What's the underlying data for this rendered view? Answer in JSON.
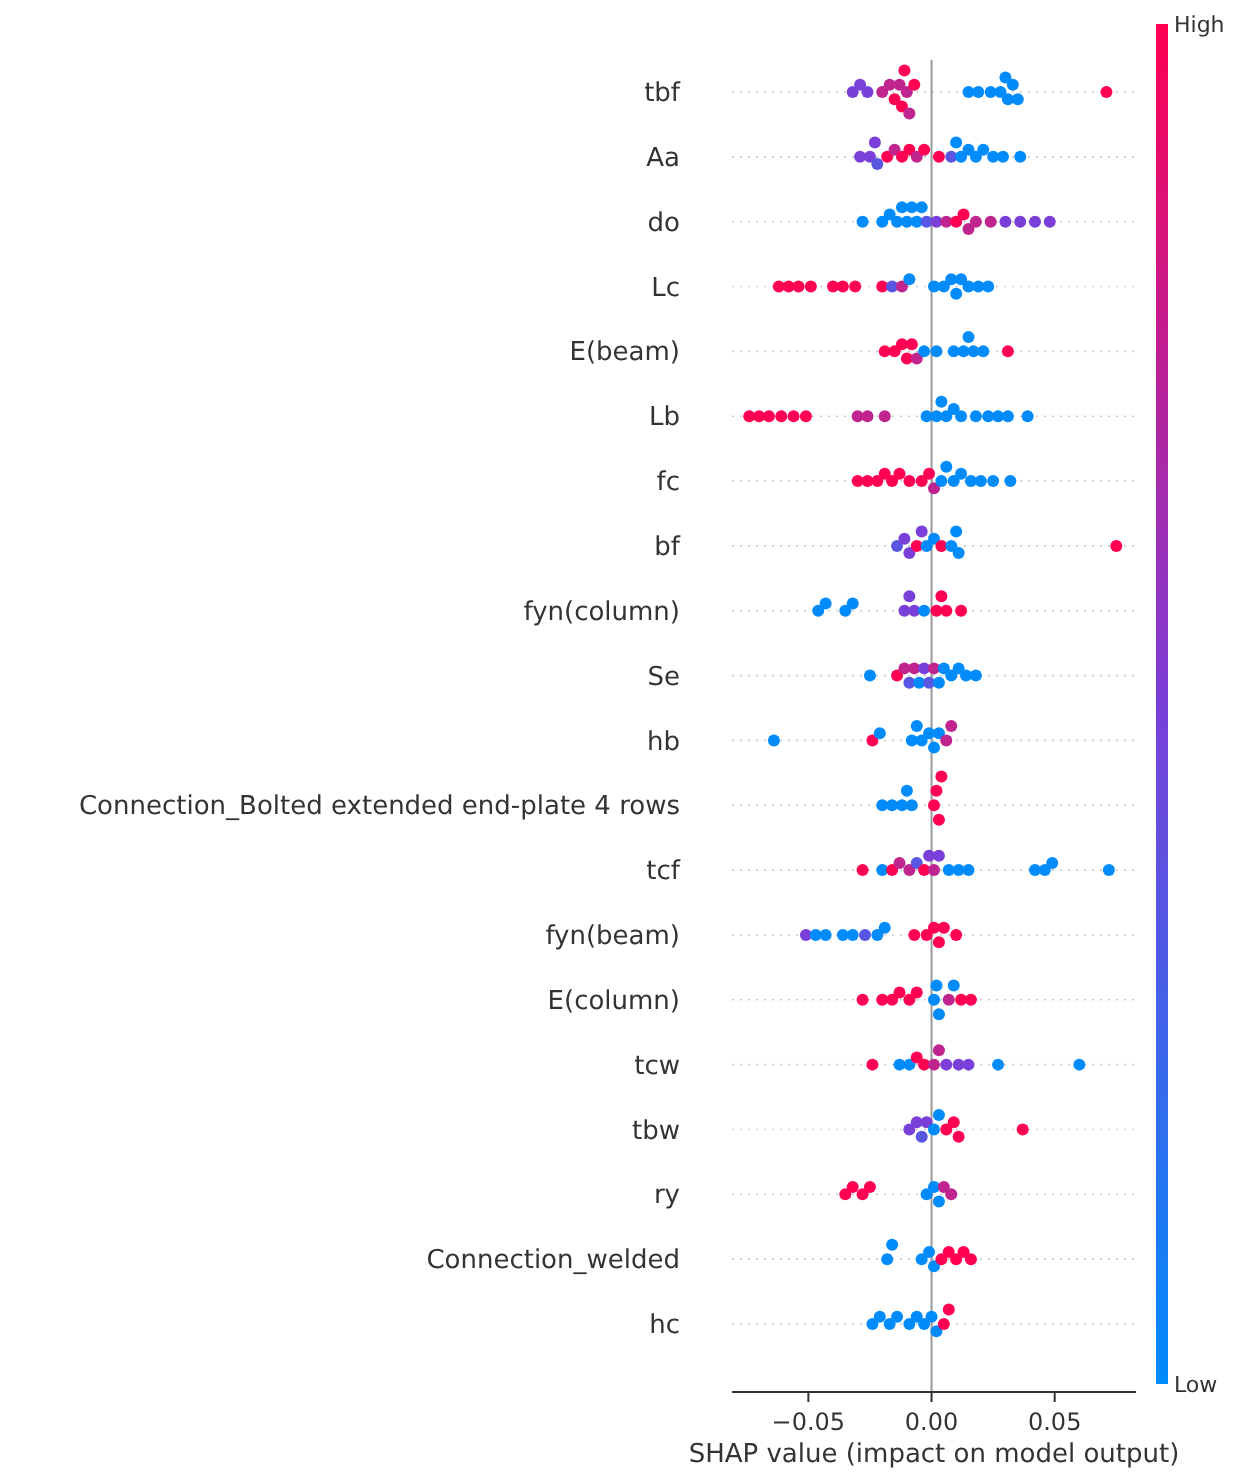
{
  "chart_data": {
    "type": "scatter",
    "orientation": "horizontal",
    "xlabel": "SHAP value (impact on model output)",
    "categories": [
      "tbf",
      "Aa",
      "do",
      "Lc",
      "E(beam)",
      "Lb",
      "fc",
      "bf",
      "fyn(column)",
      "Se",
      "hb",
      "Connection_Bolted extended end-plate 4 rows",
      "tcf",
      "fyn(beam)",
      "E(column)",
      "tcw",
      "tbw",
      "ry",
      "Connection_welded",
      "hc"
    ],
    "xlim": [
      -0.081,
      0.083
    ],
    "xticks": [
      {
        "value": -0.05,
        "label": "−0.05"
      },
      {
        "value": 0,
        "label": "0.00"
      },
      {
        "value": 0.05,
        "label": "0.05"
      }
    ],
    "clim": [
      0,
      1
    ],
    "cticks": [
      {
        "value": 0,
        "label": "Low"
      },
      {
        "value": 1,
        "label": "High"
      }
    ],
    "grid": "y",
    "marker": "circle",
    "ref_lines": [
      {
        "axis": "x",
        "value": 0,
        "color": "#999999"
      }
    ],
    "series": [
      {
        "x": [
          "tbf",
          "tbf",
          "tbf",
          "tbf",
          "tbf",
          "tbf",
          "tbf",
          "tbf",
          "tbf",
          "tbf",
          "tbf",
          "tbf",
          "tbf",
          "tbf",
          "tbf",
          "tbf",
          "tbf",
          "tbf",
          "tbf",
          "tbf",
          "tbf"
        ],
        "values": [
          -0.032,
          -0.029,
          -0.026,
          -0.02,
          -0.017,
          -0.015,
          -0.013,
          -0.012,
          -0.011,
          -0.01,
          -0.009,
          -0.007,
          0.015,
          0.019,
          0.024,
          0.028,
          0.03,
          0.031,
          0.033,
          0.035,
          0.071
        ],
        "colors": [
          "#7a3fd8",
          "#7a3fd8",
          "#7a3fd8",
          "#c0248f",
          "#c0248f",
          "#ff0052",
          "#c0248f",
          "#ff0052",
          "#ff0052",
          "#c0248f",
          "#c0248f",
          "#ff0052",
          "#008bfb",
          "#008bfb",
          "#008bfb",
          "#008bfb",
          "#008bfb",
          "#008bfb",
          "#008bfb",
          "#008bfb",
          "#ff0052"
        ]
      },
      {
        "x": [
          "Aa",
          "Aa",
          "Aa",
          "Aa",
          "Aa",
          "Aa",
          "Aa",
          "Aa",
          "Aa",
          "Aa",
          "Aa",
          "Aa",
          "Aa",
          "Aa",
          "Aa",
          "Aa",
          "Aa",
          "Aa",
          "Aa",
          "Aa"
        ],
        "values": [
          -0.029,
          -0.025,
          -0.023,
          -0.022,
          -0.018,
          -0.015,
          -0.012,
          -0.009,
          -0.006,
          -0.003,
          0.003,
          0.008,
          0.01,
          0.012,
          0.015,
          0.018,
          0.021,
          0.025,
          0.029,
          0.036
        ],
        "colors": [
          "#7a3fd8",
          "#7a3fd8",
          "#7a3fd8",
          "#5856e3",
          "#ff0052",
          "#c0248f",
          "#ff0052",
          "#ff0052",
          "#c0248f",
          "#ff0052",
          "#ff0052",
          "#5856e3",
          "#008bfb",
          "#008bfb",
          "#008bfb",
          "#008bfb",
          "#008bfb",
          "#008bfb",
          "#008bfb",
          "#008bfb"
        ]
      },
      {
        "x": [
          "do",
          "do",
          "do",
          "do",
          "do",
          "do",
          "do",
          "do",
          "do",
          "do",
          "do",
          "do",
          "do",
          "do",
          "do",
          "do",
          "do",
          "do",
          "do",
          "do",
          "do"
        ],
        "values": [
          -0.028,
          -0.02,
          -0.017,
          -0.014,
          -0.012,
          -0.01,
          -0.008,
          -0.006,
          -0.004,
          -0.002,
          0.002,
          0.006,
          0.01,
          0.013,
          0.015,
          0.018,
          0.024,
          0.03,
          0.036,
          0.042,
          0.048
        ],
        "colors": [
          "#008bfb",
          "#008bfb",
          "#008bfb",
          "#008bfb",
          "#008bfb",
          "#008bfb",
          "#008bfb",
          "#008bfb",
          "#008bfb",
          "#5856e3",
          "#7a3fd8",
          "#c0248f",
          "#ff0052",
          "#ff0052",
          "#c0248f",
          "#c0248f",
          "#c0248f",
          "#7a3fd8",
          "#7a3fd8",
          "#7a3fd8",
          "#7a3fd8"
        ]
      },
      {
        "x": [
          "Lc",
          "Lc",
          "Lc",
          "Lc",
          "Lc",
          "Lc",
          "Lc",
          "Lc",
          "Lc",
          "Lc",
          "Lc",
          "Lc",
          "Lc",
          "Lc",
          "Lc",
          "Lc",
          "Lc",
          "Lc",
          "Lc"
        ],
        "values": [
          -0.062,
          -0.058,
          -0.054,
          -0.049,
          -0.04,
          -0.036,
          -0.031,
          -0.02,
          -0.016,
          -0.012,
          -0.009,
          0.001,
          0.005,
          0.008,
          0.01,
          0.012,
          0.015,
          0.019,
          0.023
        ],
        "colors": [
          "#ff0052",
          "#ff0052",
          "#ff0052",
          "#ff0052",
          "#ff0052",
          "#ff0052",
          "#ff0052",
          "#ff0052",
          "#5856e3",
          "#c0248f",
          "#008bfb",
          "#008bfb",
          "#008bfb",
          "#008bfb",
          "#008bfb",
          "#008bfb",
          "#008bfb",
          "#008bfb",
          "#008bfb"
        ]
      },
      {
        "x": [
          "E(beam)",
          "E(beam)",
          "E(beam)",
          "E(beam)",
          "E(beam)",
          "E(beam)",
          "E(beam)",
          "E(beam)",
          "E(beam)",
          "E(beam)",
          "E(beam)",
          "E(beam)",
          "E(beam)",
          "E(beam)"
        ],
        "values": [
          -0.019,
          -0.015,
          -0.012,
          -0.01,
          -0.008,
          -0.006,
          -0.003,
          0.002,
          0.009,
          0.013,
          0.015,
          0.017,
          0.021,
          0.031
        ],
        "colors": [
          "#ff0052",
          "#ff0052",
          "#ff0052",
          "#ff0052",
          "#ff0052",
          "#c0248f",
          "#008bfb",
          "#008bfb",
          "#008bfb",
          "#008bfb",
          "#008bfb",
          "#008bfb",
          "#008bfb",
          "#ff0052"
        ]
      },
      {
        "x": [
          "Lb",
          "Lb",
          "Lb",
          "Lb",
          "Lb",
          "Lb",
          "Lb",
          "Lb",
          "Lb",
          "Lb",
          "Lb",
          "Lb",
          "Lb",
          "Lb",
          "Lb",
          "Lb",
          "Lb",
          "Lb",
          "Lb",
          "Lb"
        ],
        "values": [
          -0.074,
          -0.07,
          -0.066,
          -0.061,
          -0.056,
          -0.051,
          -0.03,
          -0.026,
          -0.019,
          -0.002,
          0.002,
          0.004,
          0.006,
          0.009,
          0.012,
          0.018,
          0.023,
          0.027,
          0.031,
          0.039
        ],
        "colors": [
          "#ff0052",
          "#ff0052",
          "#ff0052",
          "#ff0052",
          "#ff0052",
          "#ff0052",
          "#c0248f",
          "#c0248f",
          "#c0248f",
          "#008bfb",
          "#008bfb",
          "#008bfb",
          "#008bfb",
          "#008bfb",
          "#008bfb",
          "#008bfb",
          "#008bfb",
          "#008bfb",
          "#008bfb",
          "#008bfb"
        ]
      },
      {
        "x": [
          "fc",
          "fc",
          "fc",
          "fc",
          "fc",
          "fc",
          "fc",
          "fc",
          "fc",
          "fc",
          "fc",
          "fc",
          "fc",
          "fc",
          "fc",
          "fc",
          "fc",
          "fc"
        ],
        "values": [
          -0.03,
          -0.026,
          -0.022,
          -0.019,
          -0.016,
          -0.013,
          -0.009,
          -0.004,
          -0.001,
          0.001,
          0.004,
          0.006,
          0.009,
          0.012,
          0.016,
          0.02,
          0.025,
          0.032
        ],
        "colors": [
          "#ff0052",
          "#ff0052",
          "#ff0052",
          "#ff0052",
          "#ff0052",
          "#ff0052",
          "#ff0052",
          "#ff0052",
          "#ff0052",
          "#c0248f",
          "#008bfb",
          "#008bfb",
          "#008bfb",
          "#008bfb",
          "#008bfb",
          "#008bfb",
          "#008bfb",
          "#008bfb"
        ]
      },
      {
        "x": [
          "bf",
          "bf",
          "bf",
          "bf",
          "bf",
          "bf",
          "bf",
          "bf",
          "bf",
          "bf",
          "bf",
          "bf"
        ],
        "values": [
          -0.014,
          -0.011,
          -0.009,
          -0.006,
          -0.004,
          -0.002,
          0.001,
          0.004,
          0.008,
          0.01,
          0.011,
          0.075
        ],
        "colors": [
          "#5856e3",
          "#7a3fd8",
          "#7a3fd8",
          "#ff0052",
          "#7a3fd8",
          "#008bfb",
          "#008bfb",
          "#ff0052",
          "#008bfb",
          "#008bfb",
          "#008bfb",
          "#ff0052"
        ]
      },
      {
        "x": [
          "fyn(column)",
          "fyn(column)",
          "fyn(column)",
          "fyn(column)",
          "fyn(column)",
          "fyn(column)",
          "fyn(column)",
          "fyn(column)",
          "fyn(column)",
          "fyn(column)",
          "fyn(column)",
          "fyn(column)"
        ],
        "values": [
          -0.046,
          -0.043,
          -0.035,
          -0.032,
          -0.011,
          -0.009,
          -0.007,
          -0.003,
          0.002,
          0.004,
          0.006,
          0.012
        ],
        "colors": [
          "#008bfb",
          "#008bfb",
          "#008bfb",
          "#008bfb",
          "#7a3fd8",
          "#7a3fd8",
          "#7a3fd8",
          "#008bfb",
          "#ff0052",
          "#ff0052",
          "#ff0052",
          "#ff0052"
        ]
      },
      {
        "x": [
          "Se",
          "Se",
          "Se",
          "Se",
          "Se",
          "Se",
          "Se",
          "Se",
          "Se",
          "Se",
          "Se",
          "Se",
          "Se",
          "Se",
          "Se"
        ],
        "values": [
          -0.025,
          -0.014,
          -0.011,
          -0.009,
          -0.007,
          -0.005,
          -0.003,
          -0.001,
          0.001,
          0.003,
          0.005,
          0.008,
          0.011,
          0.014,
          0.018
        ],
        "colors": [
          "#008bfb",
          "#ff0052",
          "#c0248f",
          "#5856e3",
          "#c0248f",
          "#008bfb",
          "#7a3fd8",
          "#5856e3",
          "#c0248f",
          "#008bfb",
          "#008bfb",
          "#008bfb",
          "#008bfb",
          "#008bfb",
          "#008bfb"
        ]
      },
      {
        "x": [
          "hb",
          "hb",
          "hb",
          "hb",
          "hb",
          "hb",
          "hb",
          "hb",
          "hb",
          "hb",
          "hb"
        ],
        "values": [
          -0.064,
          -0.024,
          -0.021,
          -0.008,
          -0.006,
          -0.004,
          -0.001,
          0.001,
          0.003,
          0.006,
          0.008
        ],
        "colors": [
          "#008bfb",
          "#ff0052",
          "#008bfb",
          "#008bfb",
          "#008bfb",
          "#008bfb",
          "#008bfb",
          "#008bfb",
          "#008bfb",
          "#c0248f",
          "#c0248f"
        ]
      },
      {
        "x": [
          "Connection_Bolted extended end-plate 4 rows",
          "Connection_Bolted extended end-plate 4 rows",
          "Connection_Bolted extended end-plate 4 rows",
          "Connection_Bolted extended end-plate 4 rows",
          "Connection_Bolted extended end-plate 4 rows",
          "Connection_Bolted extended end-plate 4 rows",
          "Connection_Bolted extended end-plate 4 rows",
          "Connection_Bolted extended end-plate 4 rows",
          "Connection_Bolted extended end-plate 4 rows"
        ],
        "values": [
          -0.02,
          -0.016,
          -0.012,
          -0.01,
          -0.008,
          0.001,
          0.002,
          0.003,
          0.004
        ],
        "colors": [
          "#008bfb",
          "#008bfb",
          "#008bfb",
          "#008bfb",
          "#008bfb",
          "#ff0052",
          "#ff0052",
          "#ff0052",
          "#ff0052"
        ]
      },
      {
        "x": [
          "tcf",
          "tcf",
          "tcf",
          "tcf",
          "tcf",
          "tcf",
          "tcf",
          "tcf",
          "tcf",
          "tcf",
          "tcf",
          "tcf",
          "tcf",
          "tcf",
          "tcf",
          "tcf",
          "tcf"
        ],
        "values": [
          -0.028,
          -0.02,
          -0.016,
          -0.013,
          -0.009,
          -0.006,
          -0.003,
          -0.001,
          0.001,
          0.003,
          0.007,
          0.011,
          0.015,
          0.042,
          0.046,
          0.049,
          0.072
        ],
        "colors": [
          "#ff0052",
          "#008bfb",
          "#ff0052",
          "#c0248f",
          "#c0248f",
          "#5856e3",
          "#ff0052",
          "#7a3fd8",
          "#c0248f",
          "#7a3fd8",
          "#008bfb",
          "#008bfb",
          "#008bfb",
          "#008bfb",
          "#008bfb",
          "#008bfb",
          "#008bfb"
        ]
      },
      {
        "x": [
          "fyn(beam)",
          "fyn(beam)",
          "fyn(beam)",
          "fyn(beam)",
          "fyn(beam)",
          "fyn(beam)",
          "fyn(beam)",
          "fyn(beam)",
          "fyn(beam)",
          "fyn(beam)",
          "fyn(beam)",
          "fyn(beam)",
          "fyn(beam)",
          "fyn(beam)"
        ],
        "values": [
          -0.051,
          -0.047,
          -0.043,
          -0.036,
          -0.032,
          -0.027,
          -0.022,
          -0.019,
          -0.007,
          -0.002,
          0.001,
          0.003,
          0.005,
          0.01
        ],
        "colors": [
          "#7a3fd8",
          "#008bfb",
          "#008bfb",
          "#008bfb",
          "#008bfb",
          "#5856e3",
          "#008bfb",
          "#008bfb",
          "#ff0052",
          "#ff0052",
          "#ff0052",
          "#ff0052",
          "#ff0052",
          "#ff0052"
        ]
      },
      {
        "x": [
          "E(column)",
          "E(column)",
          "E(column)",
          "E(column)",
          "E(column)",
          "E(column)",
          "E(column)",
          "E(column)",
          "E(column)",
          "E(column)",
          "E(column)",
          "E(column)",
          "E(column)"
        ],
        "values": [
          -0.028,
          -0.02,
          -0.016,
          -0.013,
          -0.009,
          -0.006,
          0.001,
          0.002,
          0.003,
          0.007,
          0.009,
          0.012,
          0.016
        ],
        "colors": [
          "#ff0052",
          "#ff0052",
          "#ff0052",
          "#ff0052",
          "#ff0052",
          "#ff0052",
          "#008bfb",
          "#008bfb",
          "#008bfb",
          "#c0248f",
          "#008bfb",
          "#ff0052",
          "#ff0052"
        ]
      },
      {
        "x": [
          "tcw",
          "tcw",
          "tcw",
          "tcw",
          "tcw",
          "tcw",
          "tcw",
          "tcw",
          "tcw",
          "tcw",
          "tcw",
          "tcw"
        ],
        "values": [
          -0.024,
          -0.013,
          -0.009,
          -0.006,
          -0.003,
          0.001,
          0.003,
          0.006,
          0.011,
          0.015,
          0.027,
          0.06
        ],
        "colors": [
          "#ff0052",
          "#008bfb",
          "#008bfb",
          "#ff0052",
          "#ff0052",
          "#c0248f",
          "#c0248f",
          "#7a3fd8",
          "#7a3fd8",
          "#7a3fd8",
          "#008bfb",
          "#008bfb"
        ]
      },
      {
        "x": [
          "tbw",
          "tbw",
          "tbw",
          "tbw",
          "tbw",
          "tbw",
          "tbw",
          "tbw",
          "tbw",
          "tbw"
        ],
        "values": [
          -0.009,
          -0.006,
          -0.004,
          -0.002,
          0.001,
          0.003,
          0.006,
          0.009,
          0.011,
          0.037
        ],
        "colors": [
          "#7a3fd8",
          "#7a3fd8",
          "#5856e3",
          "#7a3fd8",
          "#008bfb",
          "#008bfb",
          "#ff0052",
          "#ff0052",
          "#ff0052",
          "#ff0052"
        ]
      },
      {
        "x": [
          "ry",
          "ry",
          "ry",
          "ry",
          "ry",
          "ry",
          "ry",
          "ry",
          "ry"
        ],
        "values": [
          -0.035,
          -0.032,
          -0.028,
          -0.025,
          -0.002,
          0.001,
          0.003,
          0.005,
          0.008
        ],
        "colors": [
          "#ff0052",
          "#ff0052",
          "#ff0052",
          "#ff0052",
          "#008bfb",
          "#008bfb",
          "#008bfb",
          "#c0248f",
          "#c0248f"
        ]
      },
      {
        "x": [
          "Connection_welded",
          "Connection_welded",
          "Connection_welded",
          "Connection_welded",
          "Connection_welded",
          "Connection_welded",
          "Connection_welded",
          "Connection_welded",
          "Connection_welded",
          "Connection_welded"
        ],
        "values": [
          -0.018,
          -0.016,
          -0.004,
          -0.001,
          0.001,
          0.004,
          0.007,
          0.01,
          0.013,
          0.016
        ],
        "colors": [
          "#008bfb",
          "#008bfb",
          "#008bfb",
          "#008bfb",
          "#008bfb",
          "#ff0052",
          "#ff0052",
          "#ff0052",
          "#ff0052",
          "#ff0052"
        ]
      },
      {
        "x": [
          "hc",
          "hc",
          "hc",
          "hc",
          "hc",
          "hc",
          "hc",
          "hc",
          "hc",
          "hc",
          "hc"
        ],
        "values": [
          -0.024,
          -0.021,
          -0.017,
          -0.014,
          -0.009,
          -0.006,
          -0.003,
          0,
          0.002,
          0.005,
          0.007
        ],
        "colors": [
          "#008bfb",
          "#008bfb",
          "#008bfb",
          "#008bfb",
          "#008bfb",
          "#008bfb",
          "#008bfb",
          "#008bfb",
          "#008bfb",
          "#ff0052",
          "#ff0052"
        ]
      }
    ]
  }
}
